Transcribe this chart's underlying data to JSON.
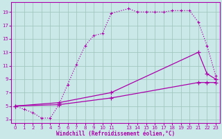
{
  "background_color": "#cbe8e8",
  "grid_color": "#a0c8c0",
  "line_color": "#aa00aa",
  "xlabel": "Windchill (Refroidissement éolien,°C)",
  "xlim": [
    -0.5,
    23.5
  ],
  "ylim": [
    2.5,
    20.5
  ],
  "yticks": [
    3,
    5,
    7,
    9,
    11,
    13,
    15,
    17,
    19
  ],
  "xticks": [
    0,
    1,
    2,
    3,
    4,
    5,
    6,
    7,
    8,
    9,
    10,
    11,
    13,
    14,
    15,
    16,
    17,
    18,
    19,
    20,
    21,
    22,
    23
  ],
  "curve1_x": [
    0,
    1,
    2,
    3,
    4,
    5,
    6,
    7,
    8,
    9,
    10,
    11,
    13,
    14,
    15,
    16,
    17,
    18,
    19,
    20,
    21,
    22,
    23
  ],
  "curve1_y": [
    5.0,
    4.5,
    4.0,
    3.2,
    3.2,
    5.2,
    8.2,
    11.2,
    14.0,
    15.5,
    15.8,
    18.8,
    19.5,
    19.0,
    19.0,
    19.0,
    19.0,
    19.2,
    19.2,
    19.2,
    17.5,
    14.0,
    9.5
  ],
  "curve2_x": [
    0,
    5,
    11,
    21,
    22,
    23
  ],
  "curve2_y": [
    5.0,
    5.5,
    7.0,
    13.0,
    9.8,
    9.0
  ],
  "curve3_x": [
    0,
    5,
    11,
    21,
    22,
    23
  ],
  "curve3_y": [
    5.0,
    5.2,
    6.2,
    8.5,
    8.5,
    8.5
  ]
}
